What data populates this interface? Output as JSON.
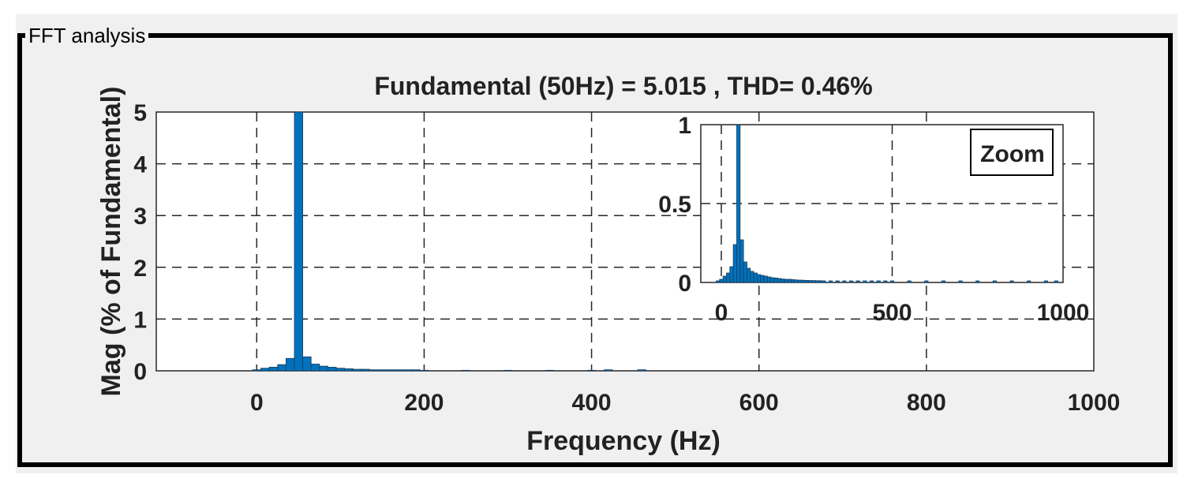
{
  "panel": {
    "title": "FFT analysis"
  },
  "chart_data": [
    {
      "type": "bar",
      "title": "Fundamental (50Hz) = 5.015 , THD= 0.46%",
      "xlabel": "Frequency (Hz)",
      "ylabel": "Mag (% of Fundamental)",
      "xlim": [
        -120,
        1000
      ],
      "ylim": [
        0,
        5
      ],
      "xticks": [
        0,
        200,
        400,
        600,
        800,
        1000
      ],
      "yticks": [
        0,
        1,
        2,
        3,
        4,
        5
      ],
      "grid": true,
      "color": "#0072bd",
      "bar_width": 10,
      "x": [
        0,
        10,
        20,
        30,
        40,
        50,
        60,
        70,
        80,
        90,
        100,
        110,
        120,
        130,
        140,
        150,
        160,
        170,
        180,
        190,
        200,
        250,
        300,
        350,
        400,
        420,
        460
      ],
      "values": [
        0.02,
        0.05,
        0.07,
        0.12,
        0.24,
        5.0,
        0.27,
        0.13,
        0.09,
        0.07,
        0.05,
        0.04,
        0.03,
        0.03,
        0.02,
        0.02,
        0.02,
        0.02,
        0.02,
        0.02,
        0.01,
        0.01,
        0.01,
        0.01,
        0.01,
        0.02,
        0.02
      ]
    },
    {
      "type": "bar",
      "title": "",
      "label": "Zoom",
      "xlim": [
        -60,
        1000
      ],
      "ylim": [
        0,
        1
      ],
      "xticks": [
        0,
        500,
        1000
      ],
      "yticks": [
        0,
        0.5,
        1
      ],
      "ytick_labels": [
        "0",
        "0.5",
        "1"
      ],
      "grid": true,
      "color": "#0072bd",
      "bar_width": 10,
      "x": [
        -10,
        0,
        10,
        20,
        30,
        40,
        50,
        60,
        70,
        80,
        90,
        100,
        110,
        120,
        130,
        140,
        150,
        160,
        170,
        180,
        190,
        200,
        210,
        220,
        230,
        240,
        250,
        260,
        270,
        280,
        290,
        300,
        320,
        340,
        360,
        380,
        400,
        420,
        440,
        460,
        480,
        500,
        550,
        600,
        650,
        700,
        750,
        800,
        850,
        900,
        950,
        980
      ],
      "values": [
        0.01,
        0.02,
        0.04,
        0.06,
        0.1,
        0.24,
        1.0,
        0.27,
        0.13,
        0.09,
        0.07,
        0.06,
        0.05,
        0.045,
        0.04,
        0.035,
        0.03,
        0.028,
        0.025,
        0.022,
        0.02,
        0.02,
        0.018,
        0.016,
        0.015,
        0.014,
        0.013,
        0.012,
        0.012,
        0.011,
        0.011,
        0.01,
        0.01,
        0.01,
        0.01,
        0.01,
        0.01,
        0.01,
        0.01,
        0.01,
        0.01,
        0.01,
        0.01,
        0.01,
        0.01,
        0.01,
        0.01,
        0.01,
        0.01,
        0.01,
        0.01,
        0.01
      ]
    }
  ]
}
